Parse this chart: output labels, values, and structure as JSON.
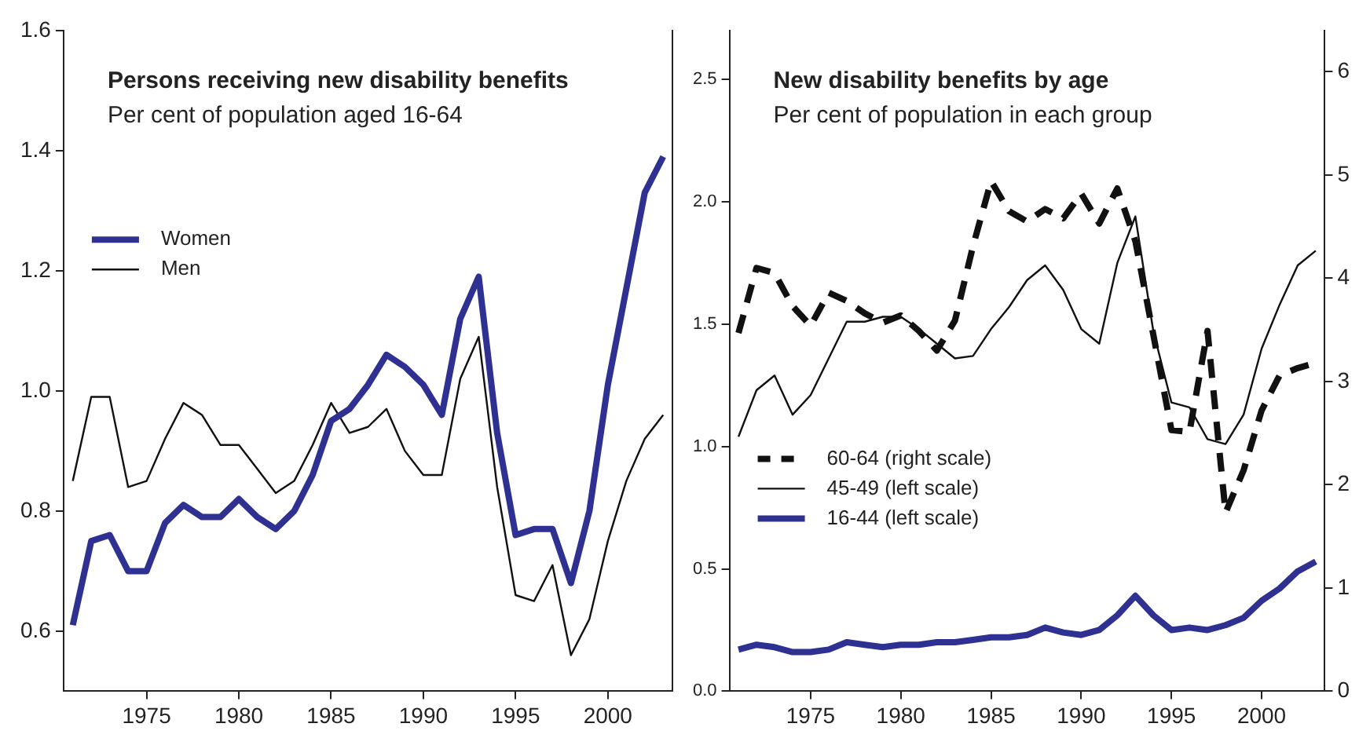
{
  "chart_data": [
    {
      "type": "line",
      "title": "Persons receiving new disability benefits",
      "subtitle": "Per cent of population aged 16-64",
      "x": [
        1971,
        1972,
        1973,
        1974,
        1975,
        1976,
        1977,
        1978,
        1979,
        1980,
        1981,
        1982,
        1983,
        1984,
        1985,
        1986,
        1987,
        1988,
        1989,
        1990,
        1991,
        1992,
        1993,
        1994,
        1995,
        1996,
        1997,
        1998,
        1999,
        2000,
        2001,
        2002,
        2003
      ],
      "series": [
        {
          "name": "Women",
          "color": "#2e3192",
          "values": [
            0.61,
            0.75,
            0.76,
            0.7,
            0.7,
            0.78,
            0.81,
            0.79,
            0.79,
            0.82,
            0.79,
            0.77,
            0.8,
            0.86,
            0.95,
            0.97,
            1.01,
            1.06,
            1.04,
            1.01,
            0.96,
            1.12,
            1.19,
            0.93,
            0.76,
            0.77,
            0.77,
            0.68,
            0.8,
            1.01,
            1.17,
            1.33,
            1.39
          ]
        },
        {
          "name": "Men",
          "color": "#111111",
          "values": [
            0.85,
            0.99,
            0.99,
            0.84,
            0.85,
            0.92,
            0.98,
            0.96,
            0.91,
            0.91,
            0.87,
            0.83,
            0.85,
            0.91,
            0.98,
            0.93,
            0.94,
            0.97,
            0.9,
            0.86,
            0.86,
            1.02,
            1.09,
            0.84,
            0.66,
            0.65,
            0.71,
            0.56,
            0.62,
            0.75,
            0.85,
            0.92,
            0.96
          ]
        }
      ],
      "xlim": [
        1970.5,
        2003.5
      ],
      "xticks": [
        1975,
        1980,
        1985,
        1990,
        1995,
        2000
      ],
      "ylim": [
        0.5,
        1.6
      ],
      "yticks": [
        {
          "value": 0.6,
          "label": "0.6"
        },
        {
          "value": 0.8,
          "label": "0.8"
        },
        {
          "value": 1.0,
          "label": "1.0"
        },
        {
          "value": 1.2,
          "label": "1.2"
        },
        {
          "value": 1.4,
          "label": "1.4"
        },
        {
          "value": 1.6,
          "label": "1.6"
        }
      ],
      "grid": false,
      "legend": "left",
      "marker": "none",
      "line_style": "solid"
    },
    {
      "type": "line",
      "title": "New disability benefits by age",
      "subtitle": "Per cent of population in each group",
      "x": [
        1971,
        1972,
        1973,
        1974,
        1975,
        1976,
        1977,
        1978,
        1979,
        1980,
        1981,
        1982,
        1983,
        1984,
        1985,
        1986,
        1987,
        1988,
        1989,
        1990,
        1991,
        1992,
        1993,
        1994,
        1995,
        1996,
        1997,
        1998,
        1999,
        2000,
        2001,
        2002,
        2003
      ],
      "series": [
        {
          "name": "60-64 (right scale)",
          "color": "#111111",
          "axis": "y2",
          "line_style": "dashed",
          "values": [
            3.47,
            4.1,
            4.05,
            3.73,
            3.54,
            3.86,
            3.78,
            3.66,
            3.57,
            3.64,
            3.49,
            3.3,
            3.59,
            4.31,
            4.94,
            4.65,
            4.55,
            4.67,
            4.58,
            4.82,
            4.53,
            4.87,
            4.36,
            3.45,
            2.53,
            2.51,
            3.49,
            1.73,
            2.14,
            2.72,
            3.06,
            3.13,
            3.18
          ]
        },
        {
          "name": "45-49 (left scale)",
          "color": "#111111",
          "values": [
            1.04,
            1.23,
            1.29,
            1.13,
            1.21,
            1.36,
            1.51,
            1.51,
            1.53,
            1.53,
            1.48,
            1.42,
            1.36,
            1.37,
            1.48,
            1.57,
            1.68,
            1.74,
            1.64,
            1.48,
            1.42,
            1.75,
            1.94,
            1.47,
            1.18,
            1.16,
            1.03,
            1.01,
            1.13,
            1.4,
            1.58,
            1.74,
            1.8
          ]
        },
        {
          "name": "16-44 (left scale)",
          "color": "#2e3192",
          "values": [
            0.17,
            0.19,
            0.18,
            0.16,
            0.16,
            0.17,
            0.2,
            0.19,
            0.18,
            0.19,
            0.19,
            0.2,
            0.2,
            0.21,
            0.22,
            0.22,
            0.23,
            0.26,
            0.24,
            0.23,
            0.25,
            0.31,
            0.39,
            0.31,
            0.25,
            0.26,
            0.25,
            0.27,
            0.3,
            0.37,
            0.42,
            0.49,
            0.53
          ]
        }
      ],
      "xlim": [
        1970.5,
        2003.5
      ],
      "xticks": [
        1975,
        1980,
        1985,
        1990,
        1995,
        2000
      ],
      "ylim": [
        0,
        2.7
      ],
      "yticks": [
        {
          "value": 0,
          "label": "0.0"
        },
        {
          "value": 0.5,
          "label": "0.5"
        },
        {
          "value": 1.0,
          "label": "1.0"
        },
        {
          "value": 1.5,
          "label": "1.5"
        },
        {
          "value": 2.0,
          "label": "2.0"
        },
        {
          "value": 2.5,
          "label": "2.5"
        }
      ],
      "y2lim": [
        0,
        6.4
      ],
      "y2ticks": [
        0,
        1,
        2,
        3,
        4,
        5,
        6
      ],
      "grid": false,
      "legend": "bottom left",
      "marker": "none",
      "line_style": "solid"
    }
  ]
}
